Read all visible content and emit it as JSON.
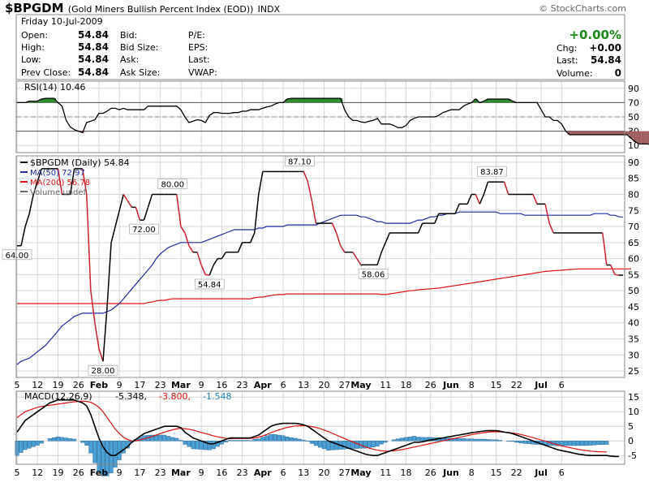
{
  "header": {
    "symbol": "$BPGDM",
    "name": "(Gold Miners Bullish Percent Index (EOD))",
    "exchange": "INDX",
    "credit": "© StockCharts.com",
    "date": "Friday 10-Jul-2009"
  },
  "quote": {
    "open_label": "Open:",
    "open": "54.84",
    "high_label": "High:",
    "high": "54.84",
    "low_label": "Low:",
    "low": "54.84",
    "prev_label": "Prev Close:",
    "prev": "54.84",
    "bid_label": "Bid:",
    "bidsize_label": "Bid Size:",
    "ask_label": "Ask:",
    "asksize_label": "Ask Size:",
    "pe_label": "P/E:",
    "eps_label": "EPS:",
    "last_label": "Last:",
    "vwap_label": "VWAP:",
    "chg_pct": "+0.00%",
    "chg_label": "Chg:",
    "chg": "+0.00",
    "last2_label": "Last:",
    "last2": "54.84",
    "volume_label": "Volume:",
    "volume": "0"
  },
  "colors": {
    "price": "#000000",
    "price_down": "#cc1f2e",
    "ma50": "#1c2aa0",
    "ma200": "#e01010",
    "macd": "#000000",
    "signal": "#e01010",
    "hist": "#4a9fd4",
    "hist_stroke": "#1f5f8f",
    "rsi_over": "#2e8b2e",
    "rsi_under": "#a06060",
    "grid": "#d6d6d6"
  },
  "chart_data": [
    {
      "type": "line",
      "panel": "rsi",
      "title": "RSI(14) 10.46",
      "ylim": [
        0,
        100
      ],
      "yticks": [
        10,
        30,
        50,
        70,
        90
      ],
      "thresholds": [
        30,
        70
      ],
      "values": [
        70,
        70,
        70,
        72,
        72,
        72,
        75,
        76,
        76,
        76,
        70,
        65,
        45,
        36,
        32,
        30,
        28,
        42,
        44,
        46,
        55,
        55,
        58,
        62,
        62,
        60,
        62,
        60,
        60,
        60,
        60,
        60,
        65,
        65,
        65,
        65,
        65,
        65,
        65,
        65,
        60,
        50,
        42,
        44,
        46,
        45,
        42,
        52,
        56,
        56,
        55,
        55,
        55,
        56,
        56,
        58,
        58,
        60,
        60,
        60,
        62,
        64,
        65,
        68,
        70,
        70,
        75,
        76,
        76,
        76,
        76,
        76,
        76,
        76,
        76,
        76,
        76,
        76,
        76,
        76,
        60,
        50,
        45,
        45,
        43,
        42,
        44,
        45,
        48,
        40,
        40,
        40,
        38,
        35,
        35,
        38,
        45,
        48,
        50,
        50,
        50,
        50,
        50,
        52,
        56,
        58,
        60,
        60,
        60,
        65,
        68,
        70,
        75,
        70,
        72,
        75,
        75,
        75,
        75,
        75,
        75,
        72,
        70,
        70,
        70,
        70,
        70,
        70,
        60,
        50,
        50,
        45,
        45,
        40,
        30,
        25,
        25,
        25,
        25,
        25,
        25,
        25,
        25,
        25,
        25,
        25,
        25,
        25,
        25,
        25,
        20,
        15,
        12,
        12,
        12,
        10.46
      ]
    },
    {
      "type": "line",
      "panel": "price",
      "ylim": [
        23,
        92
      ],
      "yticks": [
        25,
        30,
        35,
        40,
        45,
        50,
        55,
        60,
        65,
        70,
        75,
        80,
        85,
        90
      ],
      "x_ticks": [
        "5",
        "12",
        "19",
        "26",
        "Feb",
        "9",
        "17",
        "23",
        "Mar",
        "9",
        "16",
        "23",
        "Apr",
        "6",
        "13",
        "20",
        "27",
        "May",
        "11",
        "18",
        "26",
        "Jun",
        "8",
        "15",
        "22",
        "Jul",
        "6"
      ],
      "legend": [
        {
          "key": "price",
          "label": "$BPGDM (Daily) 54.84"
        },
        {
          "key": "ma50",
          "label": "MA(50) 72.97"
        },
        {
          "key": "ma200",
          "label": "MA(200) 56.78"
        },
        {
          "key": "volume",
          "label": "Volume undef"
        }
      ],
      "annotations": [
        {
          "text": "64.00",
          "i": 0,
          "v": 64.0,
          "pos": "below"
        },
        {
          "text": "28.00",
          "i": 21,
          "v": 28.0,
          "pos": "below"
        },
        {
          "text": "72.00",
          "i": 31,
          "v": 72.0,
          "pos": "below"
        },
        {
          "text": "80.00",
          "i": 38,
          "v": 80.0,
          "pos": "above"
        },
        {
          "text": "54.84",
          "i": 47,
          "v": 54.84,
          "pos": "below"
        },
        {
          "text": "87.10",
          "i": 69,
          "v": 87.1,
          "pos": "above"
        },
        {
          "text": "58.06",
          "i": 87,
          "v": 58.06,
          "pos": "below"
        },
        {
          "text": "83.87",
          "i": 116,
          "v": 83.87,
          "pos": "above"
        }
      ],
      "series": [
        {
          "key": "price",
          "name": "$BPGDM",
          "values": [
            64,
            64,
            70,
            74,
            80,
            84,
            88,
            88,
            88,
            88,
            88,
            80,
            80,
            80,
            88,
            88,
            88,
            80,
            50,
            40,
            32,
            28,
            45,
            65,
            70,
            75,
            80,
            78,
            76,
            76,
            72,
            72,
            76,
            80,
            80,
            80,
            80,
            80,
            80,
            80,
            70,
            68,
            64,
            62,
            62,
            58,
            55,
            54.84,
            58,
            60,
            60,
            62,
            62,
            62,
            62,
            65,
            65,
            65,
            68,
            80,
            87.1,
            87.1,
            87.1,
            87.1,
            87.1,
            87.1,
            87.1,
            87.1,
            87.1,
            87.1,
            87.1,
            84,
            78,
            71,
            71,
            71,
            71,
            71,
            68,
            64,
            62,
            62,
            62,
            60,
            58,
            58.06,
            58.06,
            58.06,
            58.06,
            62,
            65,
            68,
            68,
            68,
            68,
            68,
            68,
            68,
            68,
            71,
            71,
            71,
            71,
            74,
            74,
            74,
            74,
            74,
            77,
            77,
            77,
            80,
            80,
            77,
            80,
            83.87,
            83.87,
            83.87,
            83.87,
            83.87,
            80,
            80,
            80,
            80,
            80,
            80,
            80,
            77,
            77,
            77,
            71,
            68,
            68,
            68,
            68,
            68,
            68,
            68,
            68,
            68,
            68,
            68,
            68,
            68,
            58,
            58,
            55,
            54.84,
            54.84
          ]
        },
        {
          "key": "ma50",
          "name": "MA(50)",
          "values": [
            27,
            28,
            28.5,
            29,
            30,
            31,
            32,
            33,
            34.5,
            36,
            37.5,
            39,
            40,
            41,
            42,
            42.5,
            43,
            43,
            43,
            43,
            43,
            43,
            43.5,
            44,
            45,
            46,
            47.5,
            49,
            50.5,
            52,
            53.5,
            55,
            56.5,
            58,
            60,
            61.5,
            62.5,
            63.5,
            64,
            64.5,
            65,
            65,
            65,
            65,
            65,
            65,
            65.5,
            66,
            66.5,
            67,
            67.5,
            68,
            68.5,
            69,
            69,
            69,
            69,
            69,
            69,
            69.5,
            69.5,
            70,
            70,
            70,
            70,
            70,
            70.5,
            70.5,
            70.5,
            70.5,
            70.5,
            70.5,
            70.5,
            70.5,
            71,
            71.5,
            72,
            72.5,
            73,
            73.5,
            73.5,
            73.5,
            73.5,
            73.5,
            73,
            73,
            72.5,
            72,
            71.5,
            71.5,
            71,
            71,
            71,
            71,
            71,
            71,
            71,
            71.5,
            72,
            72,
            72.5,
            73,
            73,
            73.5,
            73.5,
            74,
            74,
            74,
            74.5,
            74.5,
            74.5,
            74.5,
            74.5,
            74.5,
            74.5,
            74.5,
            74.5,
            74.5,
            74,
            74,
            74,
            74,
            74,
            74,
            73.5,
            73.5,
            73.5,
            73.5,
            73.5,
            73.5,
            73.5,
            73.5,
            73.5,
            73.5,
            73.5,
            73.5,
            73.5,
            73.5,
            73.5,
            73.5,
            73.5,
            74,
            74,
            74,
            74,
            73.5,
            73.5,
            73,
            72.97
          ]
        },
        {
          "key": "ma200",
          "name": "MA(200)",
          "values": [
            46,
            46,
            46,
            46,
            46,
            46,
            46,
            46,
            46,
            46,
            46,
            46,
            46,
            46,
            46,
            46,
            46,
            46,
            46,
            46,
            46,
            46,
            46,
            46,
            46,
            46,
            46,
            46,
            46,
            46,
            46,
            46,
            46.3,
            46.5,
            46.8,
            47,
            47,
            47.3,
            47.5,
            47.5,
            47.5,
            47.5,
            47.5,
            47.5,
            47.5,
            47.5,
            47.5,
            47.5,
            47.5,
            47.5,
            47.5,
            47.5,
            47.5,
            47.5,
            47.5,
            47.5,
            47.5,
            47.5,
            47.8,
            48,
            48,
            48.3,
            48.5,
            48.7,
            48.8,
            48.8,
            49,
            49,
            49,
            49,
            49,
            49,
            49,
            49,
            49,
            49,
            49,
            49,
            49,
            49,
            49,
            49,
            49,
            49,
            49,
            49,
            49,
            49,
            49,
            48.8,
            48.8,
            49,
            49.2,
            49.4,
            49.6,
            49.8,
            50,
            50.1,
            50.3,
            50.4,
            50.5,
            50.6,
            50.7,
            50.8,
            51,
            51.2,
            51.4,
            51.6,
            51.8,
            52,
            52.2,
            52.4,
            52.6,
            52.8,
            53,
            53.2,
            53.4,
            53.6,
            53.8,
            54,
            54.2,
            54.4,
            54.6,
            54.8,
            55,
            55.2,
            55.4,
            55.6,
            55.8,
            56,
            56.1,
            56.2,
            56.3,
            56.4,
            56.5,
            56.6,
            56.7,
            56.8,
            56.8,
            56.8,
            56.8,
            56.8,
            56.8,
            56.8,
            56.8,
            56.8,
            56.8,
            56.8,
            56.8,
            56.8,
            56.78
          ]
        }
      ]
    },
    {
      "type": "line",
      "panel": "macd",
      "title": "MACD(12,26,9)",
      "values_label": [
        {
          "key": "macd",
          "text": "-5.348,"
        },
        {
          "key": "signal",
          "text": "-3.800,"
        },
        {
          "key": "hist",
          "text": "-1.548"
        }
      ],
      "ylim": [
        -8,
        17
      ],
      "yticks": [
        -5,
        0,
        5,
        10,
        15
      ],
      "x_ticks": [
        "5",
        "12",
        "19",
        "26",
        "Feb",
        "9",
        "17",
        "23",
        "Mar",
        "9",
        "16",
        "23",
        "Apr",
        "6",
        "13",
        "20",
        "27",
        "May",
        "11",
        "18",
        "26",
        "Jun",
        "8",
        "15",
        "22",
        "Jul",
        "6"
      ],
      "series": [
        {
          "key": "macd",
          "name": "MACD",
          "values": [
            3,
            5,
            7,
            8,
            9,
            10,
            11,
            12,
            13,
            13.5,
            14,
            14,
            14,
            14,
            14,
            13.5,
            13,
            12,
            9,
            5,
            1,
            -2,
            -4,
            -5,
            -5,
            -4,
            -3,
            -2,
            -0.5,
            0.5,
            1.5,
            2.5,
            3,
            3.5,
            4,
            4.5,
            5,
            5,
            5,
            5,
            4.5,
            3,
            2,
            1,
            0.5,
            0,
            -0.5,
            -1,
            -1,
            -0.5,
            0,
            0.5,
            1,
            1,
            1,
            1,
            1,
            1,
            1.5,
            2,
            3,
            4,
            5,
            5.5,
            5.8,
            6,
            6,
            6,
            6,
            5.8,
            5.5,
            5,
            4,
            3,
            2,
            1,
            0,
            -0.5,
            -1,
            -1.5,
            -2,
            -2.5,
            -3,
            -3.5,
            -4,
            -4.5,
            -4.8,
            -5,
            -5,
            -4.5,
            -4,
            -3.5,
            -3,
            -2.5,
            -2,
            -1.5,
            -1,
            -0.5,
            -0.5,
            -0.3,
            0,
            0.3,
            0.5,
            0.8,
            1,
            1.3,
            1.5,
            1.8,
            2,
            2.3,
            2.5,
            2.8,
            3,
            3.2,
            3.4,
            3.5,
            3.5,
            3.5,
            3.3,
            3,
            2.8,
            2.5,
            2,
            1.5,
            1,
            0.5,
            0,
            -0.5,
            -1,
            -1.5,
            -2,
            -2.5,
            -3,
            -3.3,
            -3.6,
            -3.9,
            -4.2,
            -4.5,
            -4.7,
            -4.9,
            -5,
            -5,
            -5,
            -5,
            -5,
            -5.2,
            -5.3,
            -5.348
          ]
        },
        {
          "key": "signal",
          "name": "Signal",
          "values": [
            8,
            9,
            10,
            10.5,
            11,
            11.5,
            11.8,
            12,
            12.2,
            12.4,
            12.6,
            12.8,
            13,
            13.2,
            13.4,
            13.5,
            13.6,
            13.5,
            13.2,
            12.5,
            11.5,
            10,
            8,
            6,
            4,
            2.5,
            1.2,
            0.5,
            0,
            0,
            0.3,
            0.7,
            1.1,
            1.5,
            2,
            2.5,
            3,
            3.4,
            3.8,
            4.1,
            4.3,
            4.2,
            4,
            3.7,
            3.3,
            2.9,
            2.5,
            2.1,
            1.7,
            1.4,
            1.1,
            0.9,
            0.8,
            0.8,
            0.8,
            0.8,
            0.8,
            0.9,
            1,
            1.3,
            1.7,
            2.2,
            2.8,
            3.3,
            3.8,
            4.2,
            4.6,
            4.9,
            5.1,
            5.2,
            5.2,
            5.1,
            4.9,
            4.6,
            4.2,
            3.7,
            3.2,
            2.6,
            2,
            1.4,
            0.8,
            0.2,
            -0.4,
            -0.9,
            -1.5,
            -2,
            -2.5,
            -2.9,
            -3.2,
            -3.4,
            -3.5,
            -3.5,
            -3.4,
            -3.2,
            -3,
            -2.7,
            -2.4,
            -2.1,
            -1.8,
            -1.5,
            -1.2,
            -0.9,
            -0.6,
            -0.3,
            0,
            0.3,
            0.6,
            0.9,
            1.2,
            1.5,
            1.8,
            2.1,
            2.4,
            2.6,
            2.8,
            3,
            3.1,
            3.1,
            3.1,
            3,
            2.9,
            2.7,
            2.5,
            2.2,
            1.9,
            1.5,
            1.1,
            0.7,
            0.3,
            -0.1,
            -0.5,
            -0.9,
            -1.3,
            -1.7,
            -2,
            -2.3,
            -2.6,
            -2.9,
            -3.1,
            -3.3,
            -3.5,
            -3.6,
            -3.7,
            -3.75,
            -3.8
          ]
        }
      ]
    }
  ]
}
